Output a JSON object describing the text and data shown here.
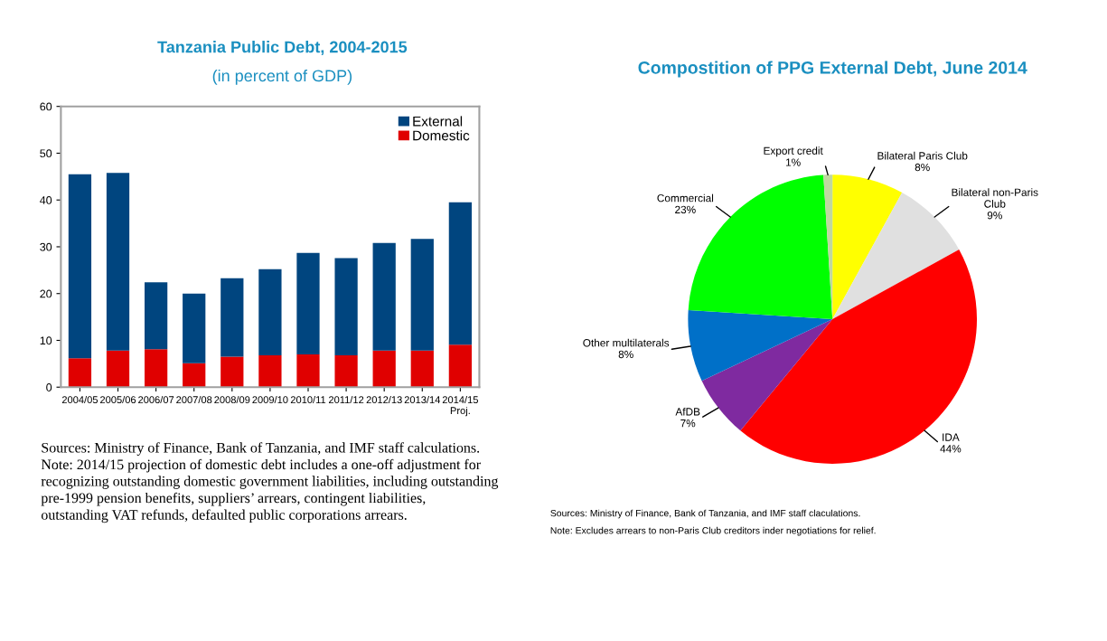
{
  "chart_data": [
    {
      "type": "bar",
      "title": "Tanzania Public Debt, 2004-2015",
      "subtitle": "(in percent of GDP)",
      "stacked": true,
      "categories": [
        "2004/05",
        "2005/06",
        "2006/07",
        "2007/08",
        "2008/09",
        "2009/10",
        "2010/11",
        "2011/12",
        "2012/13",
        "2013/14",
        "2014/15\nProj."
      ],
      "series": [
        {
          "name": "Domestic",
          "color": "#e00000",
          "values": [
            6.2,
            7.8,
            8.1,
            5.1,
            6.5,
            6.8,
            7.0,
            6.8,
            7.8,
            7.8,
            9.1
          ]
        },
        {
          "name": "External",
          "color": "#00457f",
          "values": [
            39.3,
            38.0,
            14.3,
            14.9,
            16.8,
            18.4,
            21.7,
            20.8,
            23.0,
            23.9,
            30.4
          ]
        }
      ],
      "ylim": [
        0,
        60
      ],
      "yticks": [
        0,
        10,
        20,
        30,
        40,
        50,
        60
      ],
      "grid": false,
      "legend": "top right",
      "annotations": [
        "Sources: Ministry of Finance, Bank of Tanzania, and IMF staff calculations.\nNote: 2014/15 projection of domestic debt includes a one-off adjustment for\nrecognizing outstanding domestic government liabilities, including outstanding\npre-1999 pension benefits, suppliers’ arrears, contingent liabilities,\noutstanding VAT refunds, defaulted public corporations arrears."
      ]
    },
    {
      "type": "pie",
      "title": "Compostition of PPG External Debt, June 2014",
      "categories": [
        "Bilateral Paris Club",
        "Bilateral non-Paris\nClub",
        "IDA",
        "AfDB",
        "Other multilaterals",
        "Commercial",
        "Export credit"
      ],
      "values": [
        8,
        9,
        44,
        7,
        8,
        23,
        1
      ],
      "value_labels": [
        "8%",
        "9%",
        "44%",
        "7%",
        "8%",
        "23%",
        "1%"
      ],
      "colors": [
        "#ffff00",
        "#e0e0e0",
        "#ff0000",
        "#7f2aa0",
        "#0070c8",
        "#00ff00",
        "#c0d8a0"
      ],
      "annotations": [
        "Sources: Ministry of Finance, Bank of Tanzania, and IMF staff claculations.",
        "Note: Excludes arrears to non-Paris Club creditors inder negotiations for relief."
      ]
    }
  ]
}
